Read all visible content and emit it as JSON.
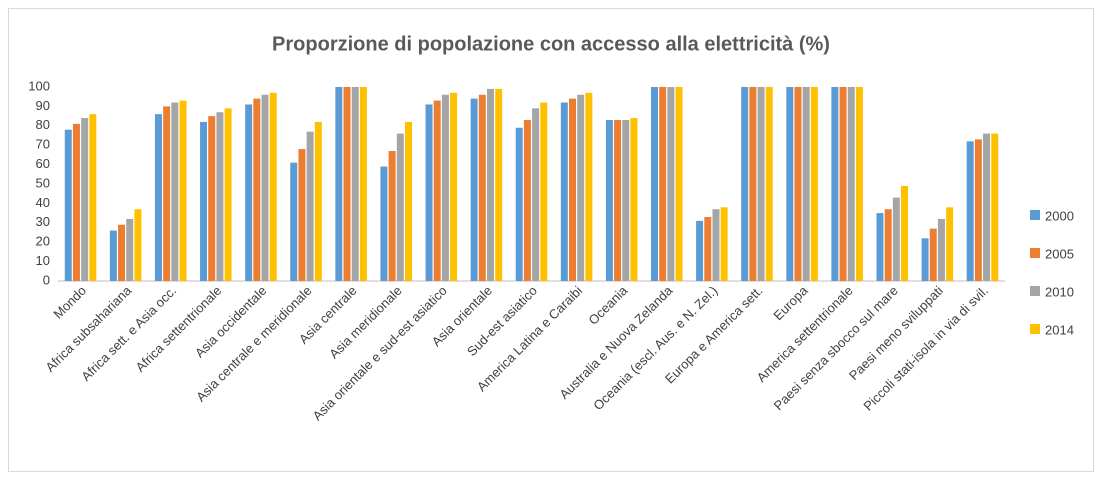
{
  "chart_data": {
    "type": "bar",
    "title": "Proporzione di popolazione con accesso alla elettricità (%)",
    "categories": [
      "Mondo",
      "Africa subsahariana",
      "Africa sett. e Asia occ.",
      "Africa settentrionale",
      "Asia occidentale",
      "Asia centrale e meridionale",
      "Asia centrale",
      "Asia meridionale",
      "Asia orientale e sud-est asiatico",
      "Asia orientale",
      "Sud-est asiatico",
      "America Latina e Caraibi",
      "Oceania",
      "Australia e Nuova Zelanda",
      "Oceania (escl. Aus. e N. Zel.)",
      "Europa e America sett.",
      "Europa",
      "America settentrionale",
      "Paesi senza sbocco sul mare",
      "Paesi meno sviluppati",
      "Piccoli stati-isola in via di svil."
    ],
    "series": [
      {
        "name": "2000",
        "color": "#5b9bd5",
        "values": [
          78,
          26,
          86,
          82,
          91,
          61,
          100,
          59,
          91,
          94,
          79,
          92,
          83,
          100,
          31,
          100,
          100,
          100,
          35,
          22,
          72
        ]
      },
      {
        "name": "2005",
        "color": "#ed7d31",
        "values": [
          81,
          29,
          90,
          85,
          94,
          68,
          100,
          67,
          93,
          96,
          83,
          94,
          83,
          100,
          33,
          100,
          100,
          100,
          37,
          27,
          73
        ]
      },
      {
        "name": "2010",
        "color": "#a5a5a5",
        "values": [
          84,
          32,
          92,
          87,
          96,
          77,
          100,
          76,
          96,
          99,
          89,
          96,
          83,
          100,
          37,
          100,
          100,
          100,
          43,
          32,
          76
        ]
      },
      {
        "name": "2014",
        "color": "#ffc000",
        "values": [
          86,
          37,
          93,
          89,
          97,
          82,
          100,
          82,
          97,
          99,
          92,
          97,
          84,
          100,
          38,
          100,
          100,
          100,
          49,
          38,
          76
        ]
      }
    ],
    "ylim": [
      0,
      100
    ],
    "yticks": [
      0,
      10,
      20,
      30,
      40,
      50,
      60,
      70,
      80,
      90,
      100
    ],
    "grid": false,
    "legend": "right"
  }
}
